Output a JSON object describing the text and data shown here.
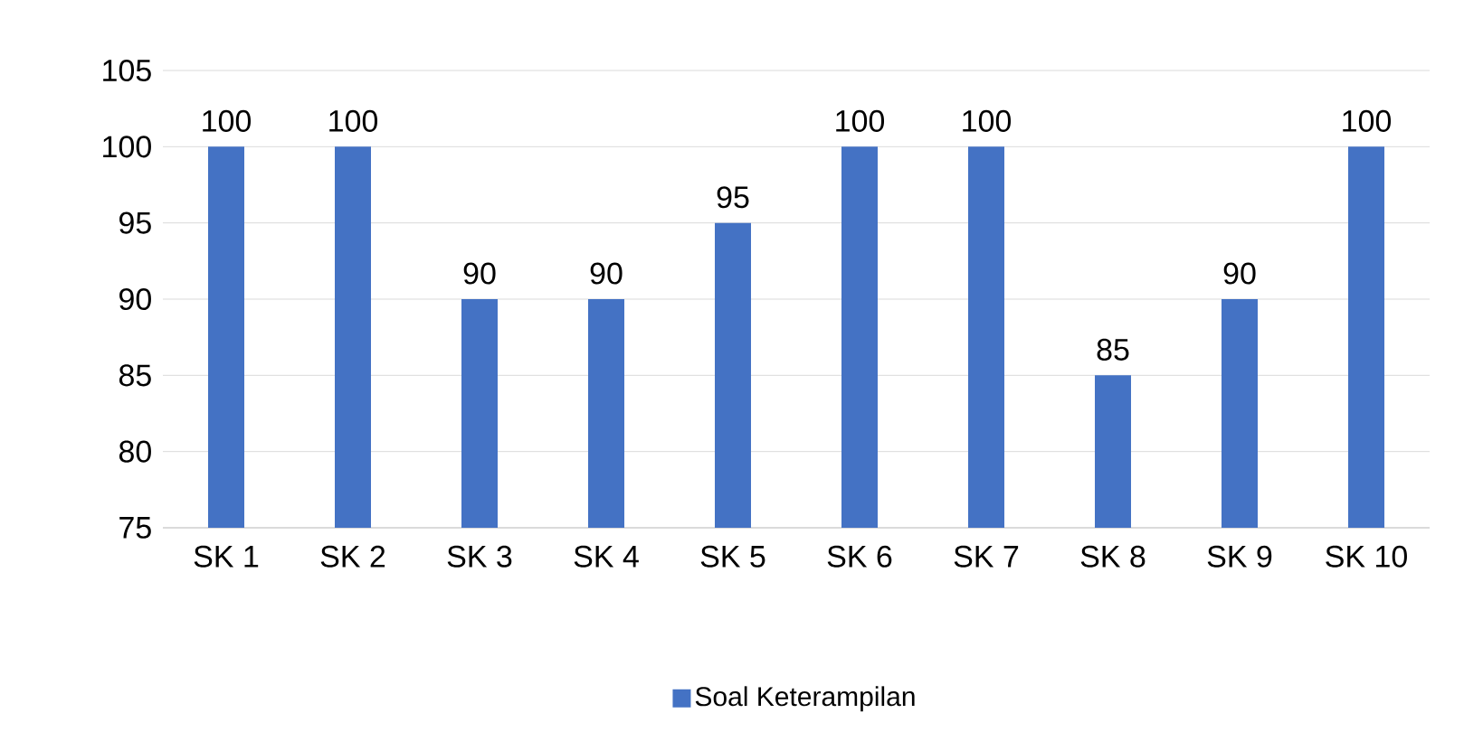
{
  "chart_data": {
    "type": "bar",
    "categories": [
      "SK 1",
      "SK 2",
      "SK 3",
      "SK 4",
      "SK 5",
      "SK 6",
      "SK 7",
      "SK 8",
      "SK 9",
      "SK 10"
    ],
    "series": [
      {
        "name": "Soal Keterampilan",
        "color": "#4472c4",
        "values": [
          100,
          100,
          90,
          90,
          95,
          100,
          100,
          85,
          90,
          100
        ]
      }
    ],
    "ylim": [
      75,
      105
    ],
    "yticks": [
      75,
      80,
      85,
      90,
      95,
      100,
      105
    ],
    "grid": "y",
    "legend": "bottom",
    "data_labels": true
  }
}
